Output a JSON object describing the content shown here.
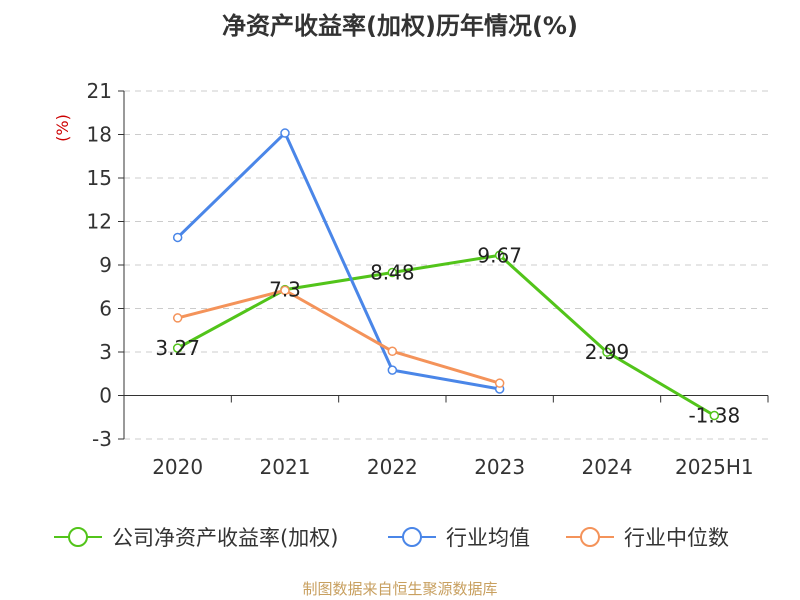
{
  "title": "净资产收益率(加权)历年情况(%)",
  "source": "制图数据来自恒生聚源数据库",
  "chart_data": {
    "type": "line",
    "title": "净资产收益率(加权)历年情况(%)",
    "ylabel": "(%)",
    "xlabel": "",
    "categories": [
      "2020",
      "2021",
      "2022",
      "2023",
      "2024",
      "2025H1"
    ],
    "ylim": [
      -3,
      21
    ],
    "yticks": [
      -3,
      0,
      3,
      6,
      9,
      12,
      15,
      18,
      21
    ],
    "grid": true,
    "legend_position": "bottom",
    "series": [
      {
        "name": "公司净资产收益率(加权)",
        "color": "#52c41a",
        "values": [
          3.27,
          7.3,
          8.48,
          9.67,
          2.99,
          -1.38
        ],
        "labels": [
          "3.27",
          "7.3",
          "8.48",
          "9.67",
          "2.99",
          "-1.38"
        ]
      },
      {
        "name": "行业均值",
        "color": "#4a86e8",
        "values": [
          10.9,
          18.1,
          1.75,
          0.45,
          null,
          null
        ]
      },
      {
        "name": "行业中位数",
        "color": "#f4935a",
        "values": [
          5.35,
          7.25,
          3.05,
          0.85,
          null,
          null
        ]
      }
    ]
  }
}
